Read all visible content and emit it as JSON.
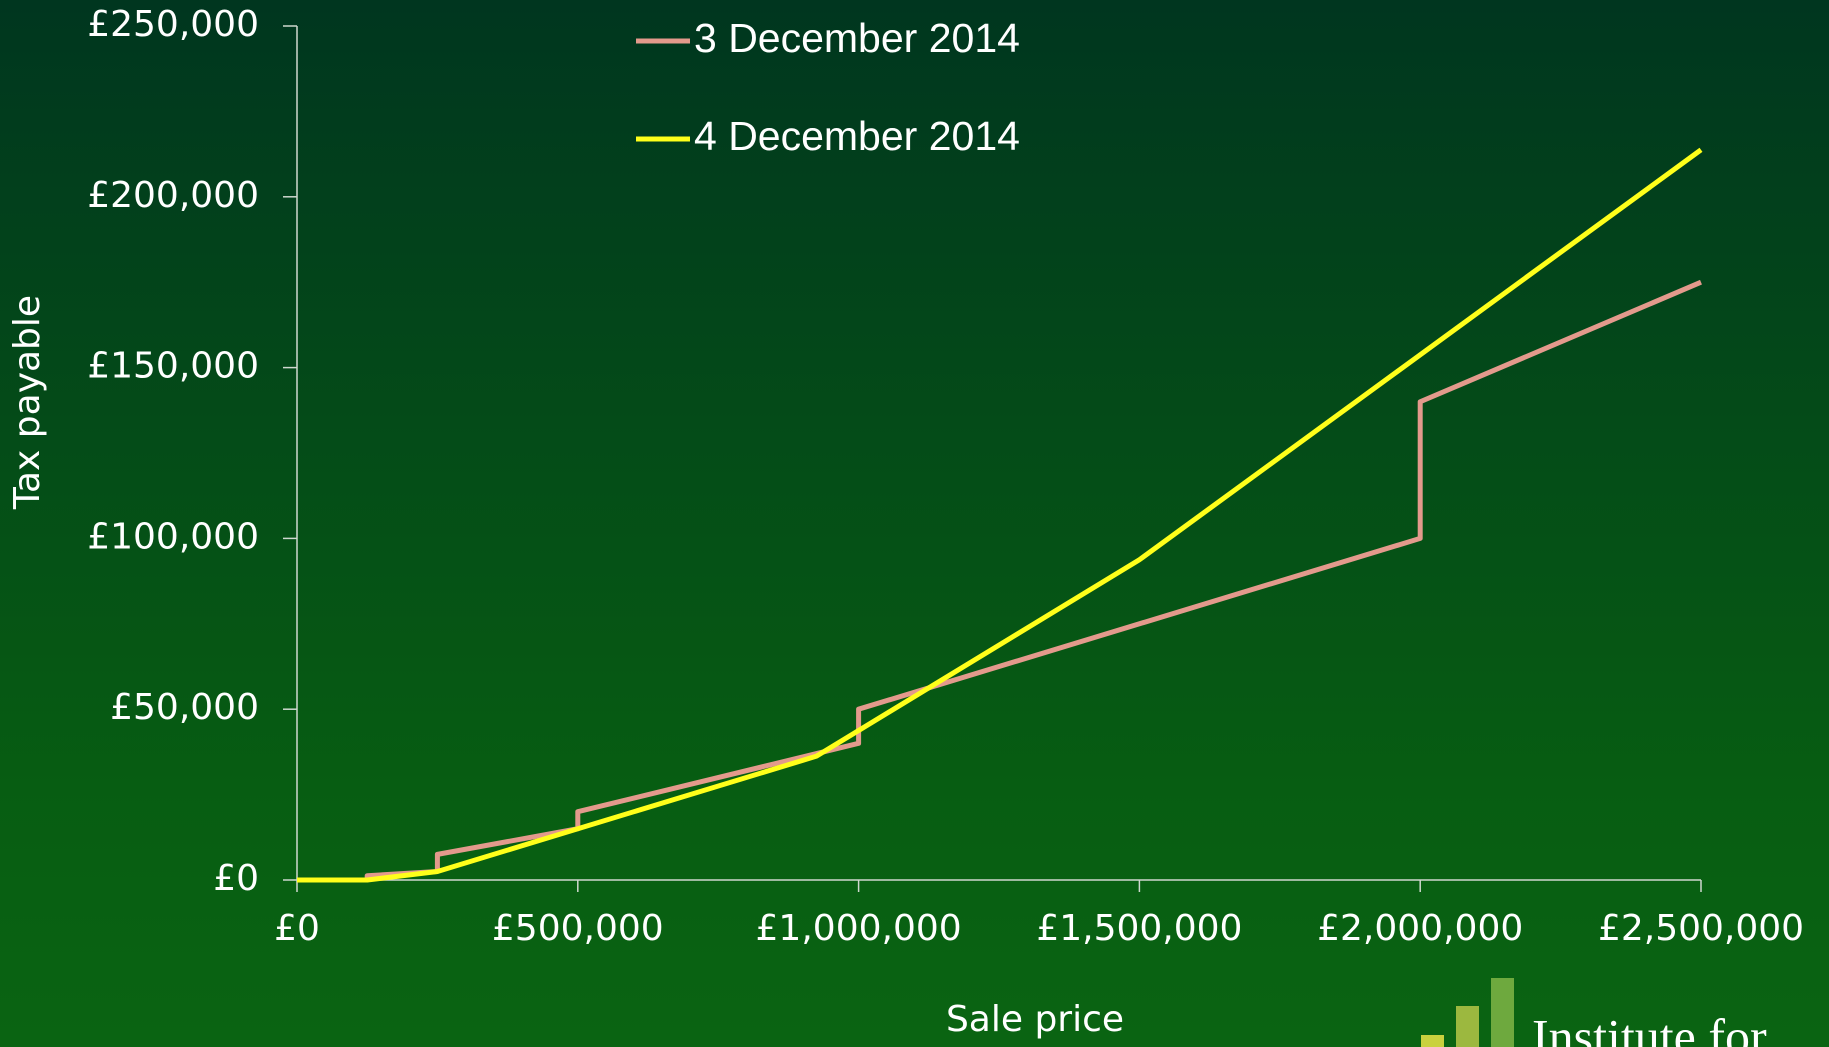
{
  "chart_data": {
    "type": "line",
    "xlabel": "Sale price",
    "ylabel": "Tax payable",
    "annotation": "Institute for",
    "series": [
      {
        "name": "3 December 2014",
        "color": "#e39a8c",
        "x": [
          0,
          125000,
          125000,
          250000,
          250000,
          500000,
          500000,
          1000000,
          1000000,
          2000000,
          2000000,
          2500000
        ],
        "values": [
          0,
          0,
          1250,
          2500,
          7500,
          15000,
          20000,
          40000,
          50000,
          100000,
          140000,
          175000
        ]
      },
      {
        "name": "4 December 2014",
        "color": "#ffff1a",
        "x": [
          0,
          125000,
          250000,
          925000,
          1500000,
          2500000
        ],
        "values": [
          0,
          0,
          2500,
          36250,
          93750,
          213750
        ]
      }
    ],
    "xlim": [
      0,
      2500000
    ],
    "ylim": [
      0,
      250000
    ],
    "xticks": [
      {
        "value": 0,
        "label": "£0"
      },
      {
        "value": 500000,
        "label": "£500,000"
      },
      {
        "value": 1000000,
        "label": "£1,000,000"
      },
      {
        "value": 1500000,
        "label": "£1,500,000"
      },
      {
        "value": 2000000,
        "label": "£2,000,000"
      },
      {
        "value": 2500000,
        "label": "£2,500,000"
      }
    ],
    "yticks": [
      {
        "value": 0,
        "label": "£0"
      },
      {
        "value": 50000,
        "label": "£50,000"
      },
      {
        "value": 100000,
        "label": "£100,000"
      },
      {
        "value": 150000,
        "label": "£150,000"
      },
      {
        "value": 200000,
        "label": "£200,000"
      },
      {
        "value": 250000,
        "label": "£250,000"
      }
    ],
    "legend": "top"
  }
}
